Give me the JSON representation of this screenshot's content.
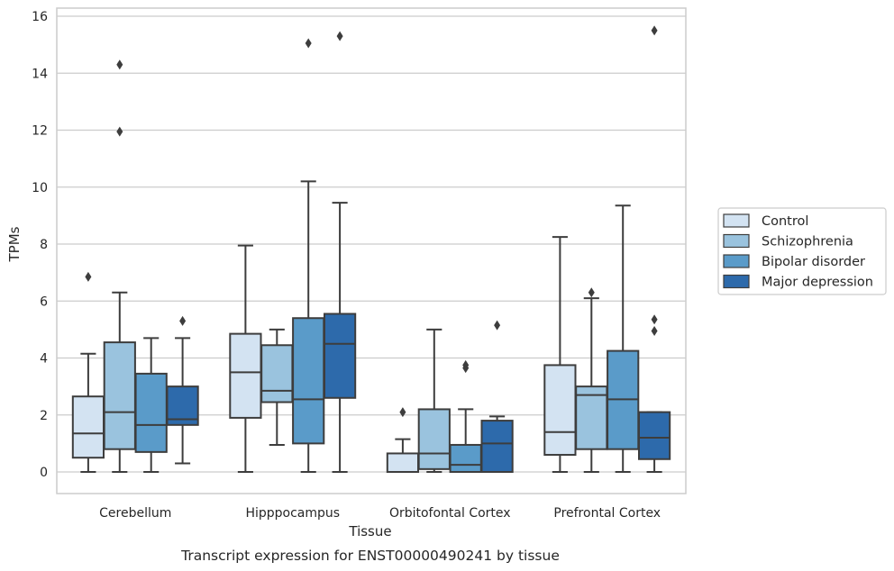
{
  "chart_data": {
    "type": "box",
    "title": "",
    "caption": "Transcript expression for ENST00000490241 by tissue",
    "xlabel": "Tissue",
    "ylabel": "TPMs",
    "ylim": [
      -0.75,
      16.3
    ],
    "yticks": [
      0,
      2,
      4,
      6,
      8,
      10,
      12,
      14,
      16
    ],
    "grid": "horizontal",
    "legend_position": "right",
    "categories": [
      "Cerebellum",
      "Hipppocampus",
      "Orbitofontal Cortex",
      "Prefrontal Cortex"
    ],
    "series": [
      {
        "name": "Control",
        "color": "#d3e3f2",
        "boxes": [
          {
            "whislo": 0,
            "q1": 0.5,
            "med": 1.35,
            "q3": 2.65,
            "whishi": 4.15,
            "fliers": [
              6.85
            ]
          },
          {
            "whislo": 0,
            "q1": 1.9,
            "med": 3.5,
            "q3": 4.85,
            "whishi": 7.95,
            "fliers": []
          },
          {
            "whislo": 0,
            "q1": 0,
            "med": 0,
            "q3": 0.65,
            "whishi": 1.15,
            "fliers": [
              2.1
            ]
          },
          {
            "whislo": 0,
            "q1": 0.6,
            "med": 1.4,
            "q3": 3.75,
            "whishi": 8.25,
            "fliers": []
          }
        ]
      },
      {
        "name": "Schizophrenia",
        "color": "#9ac3de",
        "boxes": [
          {
            "whislo": 0,
            "q1": 0.8,
            "med": 2.1,
            "q3": 4.55,
            "whishi": 6.3,
            "fliers": [
              11.95,
              14.3
            ]
          },
          {
            "whislo": 0.95,
            "q1": 2.45,
            "med": 2.85,
            "q3": 4.45,
            "whishi": 5.0,
            "fliers": []
          },
          {
            "whislo": 0,
            "q1": 0.1,
            "med": 0.65,
            "q3": 2.2,
            "whishi": 5.0,
            "fliers": []
          },
          {
            "whislo": 0,
            "q1": 0.8,
            "med": 2.7,
            "q3": 3.0,
            "whishi": 6.1,
            "fliers": [
              6.3
            ]
          }
        ]
      },
      {
        "name": "Bipolar disorder",
        "color": "#5a9bc9",
        "boxes": [
          {
            "whislo": 0,
            "q1": 0.7,
            "med": 1.65,
            "q3": 3.45,
            "whishi": 4.7,
            "fliers": []
          },
          {
            "whislo": 0,
            "q1": 1.0,
            "med": 2.55,
            "q3": 5.4,
            "whishi": 10.2,
            "fliers": [
              15.05
            ]
          },
          {
            "whislo": 0,
            "q1": 0,
            "med": 0.25,
            "q3": 0.95,
            "whishi": 2.2,
            "fliers": [
              3.65,
              3.75
            ]
          },
          {
            "whislo": 0,
            "q1": 0.8,
            "med": 2.55,
            "q3": 4.25,
            "whishi": 9.35,
            "fliers": []
          }
        ]
      },
      {
        "name": "Major depression",
        "color": "#2d6aab",
        "boxes": [
          {
            "whislo": 0.3,
            "q1": 1.65,
            "med": 1.85,
            "q3": 3.0,
            "whishi": 4.7,
            "fliers": [
              5.3
            ]
          },
          {
            "whislo": 0,
            "q1": 2.6,
            "med": 4.5,
            "q3": 5.55,
            "whishi": 9.45,
            "fliers": [
              15.3
            ]
          },
          {
            "whislo": 0,
            "q1": 0,
            "med": 1.0,
            "q3": 1.8,
            "whishi": 1.95,
            "fliers": [
              5.15
            ]
          },
          {
            "whislo": 0,
            "q1": 0.45,
            "med": 1.2,
            "q3": 2.1,
            "whishi": 2.1,
            "fliers": [
              4.95,
              5.35,
              15.5
            ]
          }
        ]
      }
    ]
  }
}
